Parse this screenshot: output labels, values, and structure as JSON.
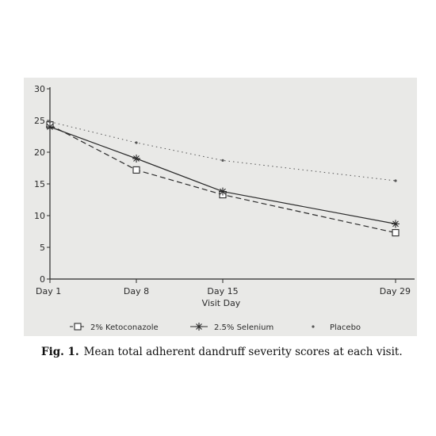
{
  "chart_data": {
    "type": "line",
    "categories": [
      "Day 1",
      "Day 8",
      "Day 15",
      "Day 29"
    ],
    "x_days": [
      1,
      8,
      15,
      29
    ],
    "xlabel": "Visit Day",
    "ylabel": "",
    "ylim": [
      0,
      30
    ],
    "yticks": [
      "0",
      "5",
      "10",
      "15",
      "20",
      "25",
      "30"
    ],
    "grid": false,
    "legend_position": "bottom",
    "series": [
      {
        "name": "2% Ketoconazole",
        "values": [
          24.3,
          17.2,
          13.3,
          7.3
        ],
        "style": "dashed",
        "marker": "square",
        "color": "#2b2b2b"
      },
      {
        "name": "2.5% Selenium",
        "values": [
          24.0,
          19.0,
          13.8,
          8.7
        ],
        "style": "solid",
        "marker": "asterisk",
        "color": "#2b2b2b"
      },
      {
        "name": "Placebo",
        "values": [
          24.8,
          21.5,
          18.7,
          15.5
        ],
        "style": "dotted",
        "marker": "dot",
        "color": "#555555"
      }
    ]
  },
  "caption": {
    "label": "Fig. 1.",
    "text": "Mean total adherent dandruff severity scores at each visit."
  }
}
